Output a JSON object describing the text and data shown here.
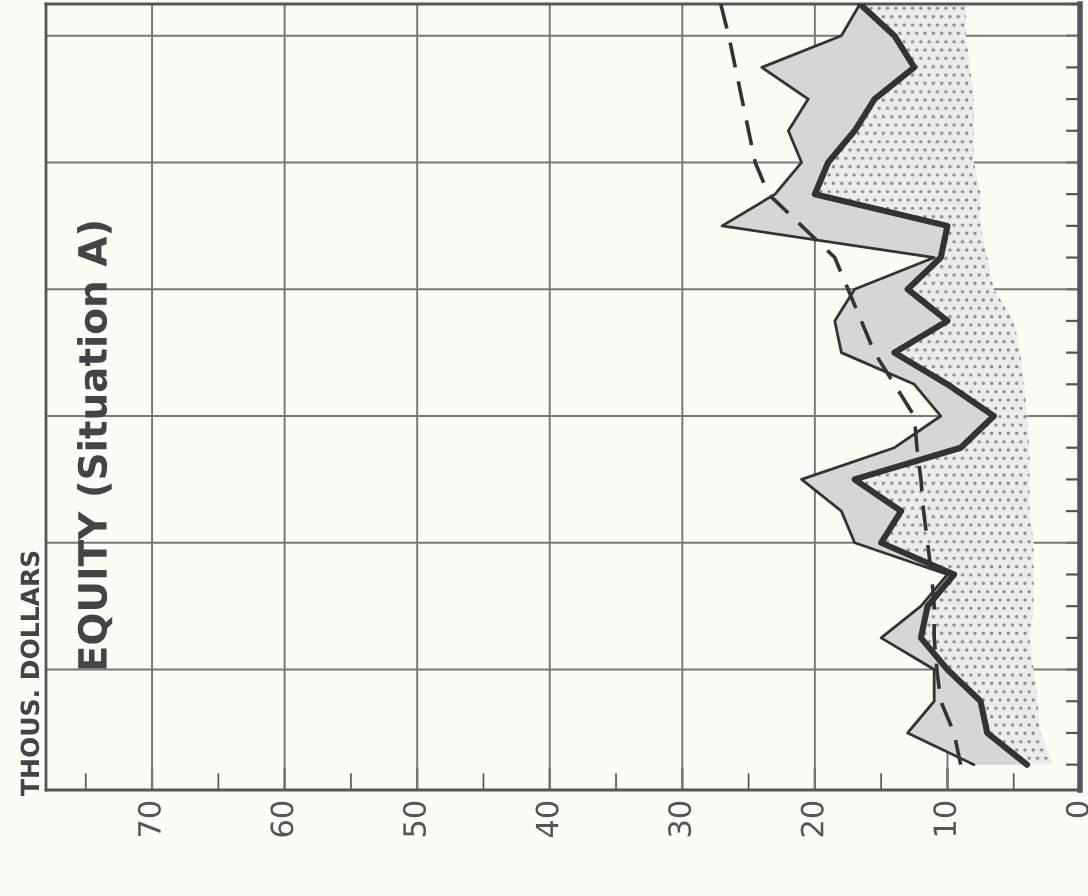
{
  "chart_data": {
    "type": "line",
    "orientation": "horizontal",
    "title": "EQUITY (Situation A)",
    "annotations": [
      "THOUS. DOLLARS"
    ],
    "categories": [
      null,
      null,
      null,
      null,
      null,
      null,
      null,
      null,
      null,
      null,
      null,
      null,
      null,
      null,
      null,
      null,
      null,
      null,
      null,
      null,
      null,
      null,
      null,
      null,
      null
    ],
    "series": [
      {
        "color": "#333333",
        "line_style": "solid",
        "values": [
          16.6,
          14,
          12.5,
          15.5,
          17,
          19,
          20,
          10,
          10.5,
          13,
          10,
          14,
          10,
          6.5,
          9,
          17,
          13.5,
          15,
          9.5,
          11.5,
          12,
          10,
          7.5,
          7,
          4
        ],
        "lower": [
          8.6,
          8.6,
          8.3,
          8,
          8,
          8,
          7.5,
          7.5,
          7,
          6.5,
          5,
          4.5,
          4.2,
          4,
          3.8,
          3.8,
          3.8,
          3.5,
          3.5,
          3.5,
          3.8,
          3.5,
          3.2,
          3,
          2
        ],
        "upper": [
          16.6,
          14,
          12.5,
          15.5,
          17,
          19,
          20,
          10,
          10.5,
          13,
          10,
          14,
          10,
          6.5,
          9,
          17,
          13.5,
          15,
          9.5,
          11.5,
          12,
          10,
          7.5,
          7,
          4
        ]
      },
      {
        "color": "#333333",
        "line_style": "solid",
        "values": [
          16.6,
          18,
          24,
          20.5,
          22,
          21,
          23,
          27,
          11,
          17,
          18.5,
          18,
          12.5,
          10.5,
          14,
          21,
          18,
          17,
          10,
          12,
          15,
          11,
          11,
          13,
          8
        ],
        "lower": [
          16.6,
          14,
          12.5,
          15.5,
          17,
          19,
          20,
          10,
          10.5,
          13,
          10,
          14,
          10,
          6.5,
          9,
          17,
          13.5,
          15,
          9.5,
          11.5,
          12,
          10,
          7.5,
          7,
          4
        ],
        "upper": [
          16.6,
          18,
          24,
          20.5,
          22,
          21,
          23,
          27,
          11,
          17,
          18.5,
          18,
          12.5,
          10.5,
          14,
          21,
          18,
          17,
          10,
          12,
          15,
          11,
          11,
          13,
          8
        ]
      },
      {
        "color": "#333333",
        "line_style": "dashed",
        "values": [
          27.1,
          26.5,
          26,
          25.5,
          25,
          24.5,
          23.5,
          21,
          18.5,
          17.5,
          16.5,
          15.5,
          14,
          12.5,
          12.3,
          12,
          11.8,
          11.5,
          11.2,
          11,
          11,
          10.8,
          10.5,
          9.5,
          9
        ]
      }
    ],
    "xlim": [
      78,
      0
    ],
    "xticks": [
      0,
      10,
      20,
      30,
      40,
      50,
      60,
      70,
      {
        "value": 5,
        "label": null
      },
      {
        "value": 15,
        "label": null
      },
      {
        "value": 25,
        "label": null
      },
      {
        "value": 35,
        "label": null
      },
      {
        "value": 45,
        "label": null
      },
      {
        "value": 55,
        "label": null
      },
      {
        "value": 65,
        "label": null
      },
      {
        "value": 75,
        "label": null
      }
    ],
    "grid": true
  }
}
